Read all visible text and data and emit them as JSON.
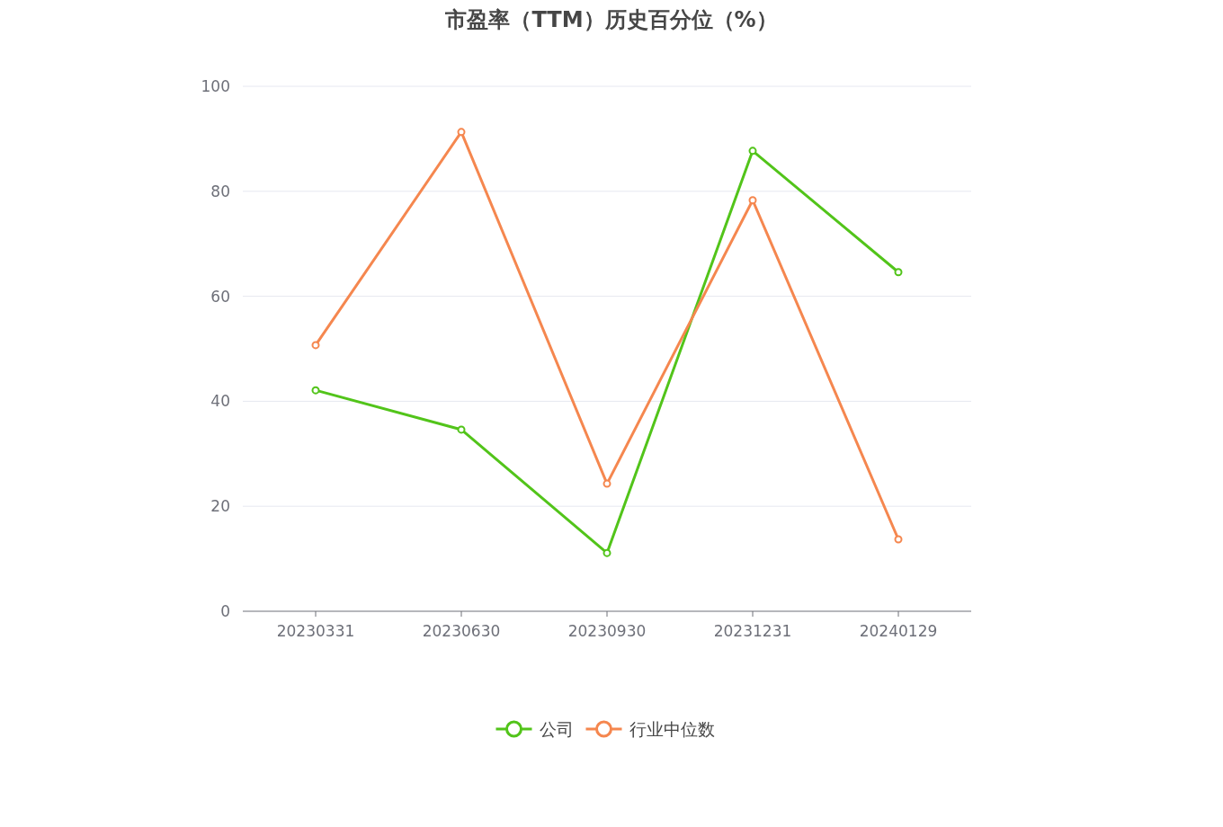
{
  "chart_data": {
    "type": "line",
    "title": "市盈率（TTM）历史百分位（%）",
    "categories": [
      "20230331",
      "20230630",
      "20230930",
      "20231231",
      "20240129"
    ],
    "series": [
      {
        "name": "公司",
        "color": "#52c41a",
        "values": [
          42.1,
          34.6,
          11.1,
          87.7,
          64.6
        ]
      },
      {
        "name": "行业中位数",
        "color": "#f5874f",
        "values": [
          50.7,
          91.3,
          24.3,
          78.3,
          13.7
        ]
      }
    ],
    "ylim": [
      0,
      100
    ],
    "yticks": [
      0,
      20,
      40,
      60,
      80,
      100
    ],
    "grid": "y",
    "legend": "bottom",
    "marker": "circle",
    "line_style": "solid"
  }
}
